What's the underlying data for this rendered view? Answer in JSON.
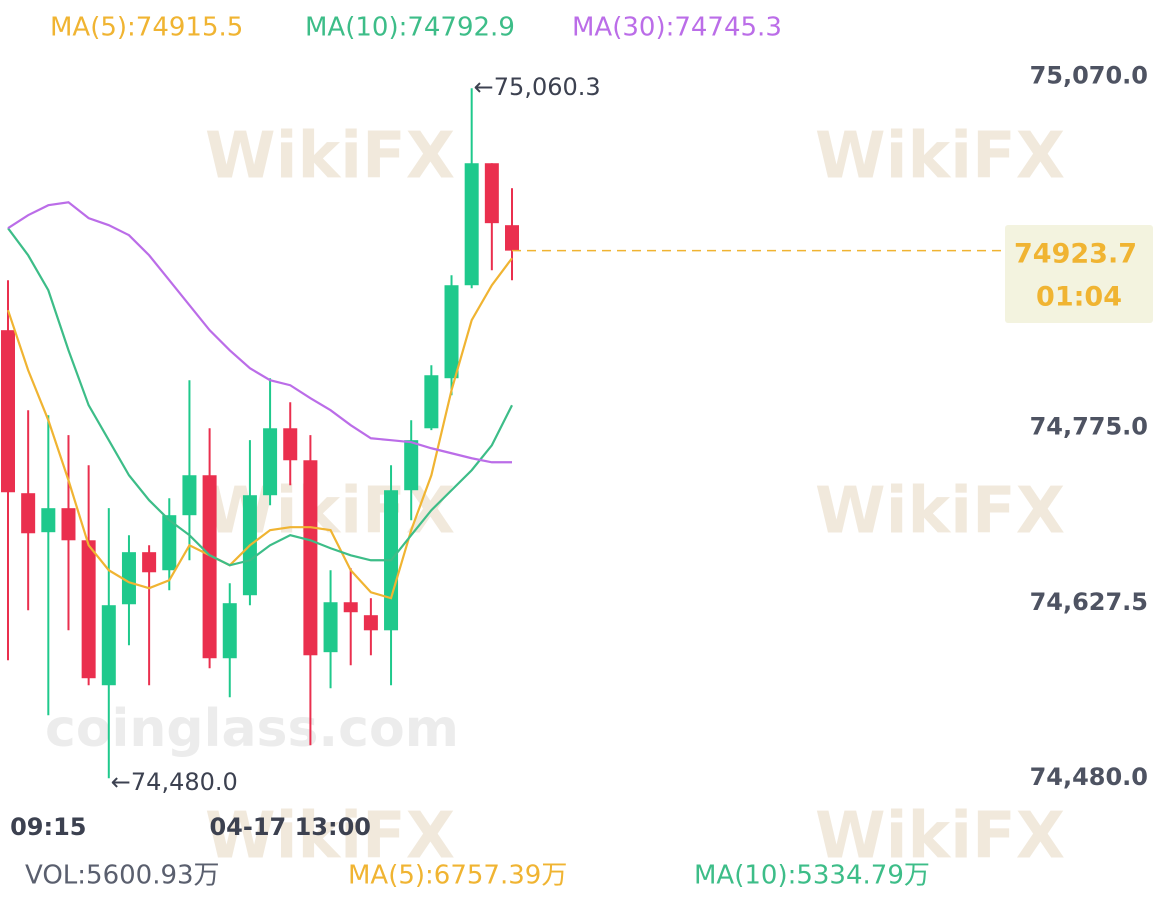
{
  "chart_data": {
    "type": "candlestick",
    "watermarks": [
      "WikiFX",
      "coinglass.com"
    ],
    "categories": [
      null,
      null,
      "09:15",
      null,
      null,
      null,
      null,
      null,
      null,
      null,
      null,
      null,
      null,
      null,
      "04-17 13:00",
      null,
      null,
      null,
      null,
      null,
      null,
      null,
      null,
      null,
      null,
      null
    ],
    "open": [
      74856.8,
      74719.7,
      74686.9,
      74707.1,
      74680.1,
      74558.2,
      74626.3,
      74670.1,
      74654.9,
      74701.2,
      74734.8,
      74580.9,
      74633.9,
      74718.0,
      74774.3,
      74747.4,
      74586.0,
      74628.0,
      74617.1,
      74604.4,
      74722.2,
      74774.3,
      74816.4,
      74894.6,
      74997.2,
      74945.1
    ],
    "high": [
      74898.8,
      74789.5,
      74785.3,
      74768.5,
      74743.2,
      74707.1,
      74684.3,
      74675.9,
      74715.5,
      74814.7,
      74774.3,
      74644.0,
      74764.3,
      74816.4,
      74796.2,
      74768.5,
      74654.9,
      74656.6,
      74631.4,
      74743.2,
      74781.1,
      74827.3,
      74903.0,
      75060.3,
      74997.2,
      74976.2
    ],
    "low": [
      74579.2,
      74621.3,
      74533.0,
      74604.4,
      74558.2,
      74480.0,
      74591.8,
      74558.2,
      74638.1,
      74663.3,
      74572.5,
      74548.1,
      74625.5,
      74709.6,
      74726.4,
      74507.7,
      74555.7,
      74575.0,
      74583.4,
      74558.2,
      74697.0,
      74772.7,
      74802.1,
      74892.1,
      74907.2,
      74898.8
    ],
    "close": [
      74720.5,
      74686.0,
      74707.1,
      74680.1,
      74564.1,
      74625.5,
      74670.1,
      74653.2,
      74701.2,
      74734.8,
      74580.9,
      74627.2,
      74718.0,
      74774.3,
      74747.4,
      74583.4,
      74628.0,
      74619.6,
      74604.4,
      74722.2,
      74764.3,
      74818.9,
      74894.6,
      74997.2,
      74946.8,
      74923.7
    ],
    "up_color": "#1fc98c",
    "down_color": "#ea2f4e",
    "series": [
      {
        "name": "MA(5):74915.5",
        "color": "#f0b432",
        "values": [
          74873.6,
          74823.1,
          74781.1,
          74730.6,
          74675.9,
          74654.9,
          74644.8,
          74639.8,
          74646.5,
          74675.9,
          74667.5,
          74659.1,
          74675.9,
          74688.6,
          74691.1,
          74691.1,
          74688.6,
          74654.9,
          74636.4,
          74631.4,
          74688.6,
          74734.8,
          74806.3,
          74865.2,
          74894.6,
          74917.3
        ]
      },
      {
        "name": "MA(10):74792.9",
        "color": "#3dbd88",
        "values": [
          74942.6,
          74919.8,
          74890.4,
          74839.9,
          74793.7,
          74764.3,
          74734.8,
          74713.8,
          74697.0,
          74684.4,
          74667.5,
          74659.1,
          74663.3,
          74675.9,
          74684.4,
          74680.1,
          74673.4,
          74667.5,
          74663.3,
          74663.3,
          74684.4,
          74705.4,
          74722.2,
          74739.0,
          74760.0,
          74793.7
        ]
      },
      {
        "name": "MA(30):74745.3",
        "color": "#bb6de8",
        "values": [
          74942.6,
          74953.5,
          74961.9,
          74964.4,
          74951.0,
          74945.1,
          74936.7,
          74919.8,
          74898.8,
          74877.8,
          74856.8,
          74839.9,
          74824.8,
          74814.7,
          74810.5,
          74799.6,
          74789.5,
          74776.9,
          74765.9,
          74764.3,
          74762.6,
          74757.5,
          74753.3,
          74749.1,
          74745.7,
          74745.7
        ]
      }
    ],
    "ylim": [
      74460,
      75100
    ],
    "yticks": [
      {
        "value": 75070,
        "label": "75,070.0"
      },
      {
        "value": 74775,
        "label": "74,775.0"
      },
      {
        "value": 74627.5,
        "label": "74,627.5"
      },
      {
        "value": 74480,
        "label": "74,480.0"
      }
    ],
    "annotations": [
      {
        "text": "←75,060.3",
        "value": 75060.3,
        "index": 23
      },
      {
        "text": "←74,480.0",
        "value": 74480.0,
        "index": 5
      }
    ],
    "last_price": 74923.7,
    "last_price_color": "#f0b432",
    "countdown": "01:04",
    "volume_legend": [
      {
        "text": "VOL:5600.93万",
        "color": "#5a5f6e"
      },
      {
        "text": "MA(5):6757.39万",
        "color": "#f0b432"
      },
      {
        "text": "MA(10):5334.79万",
        "color": "#3dbd88"
      }
    ]
  }
}
